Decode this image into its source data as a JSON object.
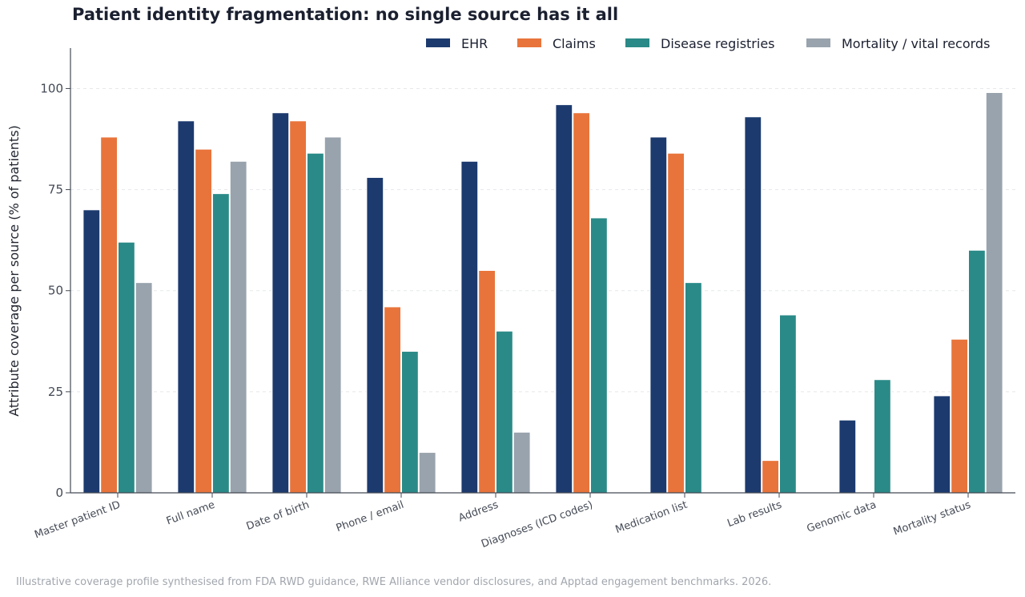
{
  "chart_data": {
    "type": "bar",
    "title": "Patient identity fragmentation: no single source has it all",
    "ylabel": "Attribute coverage per source (% of patients)",
    "xlabel": "",
    "ylim": [
      0,
      110
    ],
    "yticks": [
      0,
      25,
      50,
      75,
      100
    ],
    "grid": true,
    "legend_position": "top-right",
    "categories": [
      "Master patient ID",
      "Full name",
      "Date of birth",
      "Phone / email",
      "Address",
      "Diagnoses (ICD codes)",
      "Medication list",
      "Lab results",
      "Genomic data",
      "Mortality status"
    ],
    "series": [
      {
        "name": "EHR",
        "color": "#1c3a6e",
        "values": [
          70,
          92,
          94,
          78,
          82,
          96,
          88,
          93,
          18,
          24
        ]
      },
      {
        "name": "Claims",
        "color": "#e8743b",
        "values": [
          88,
          85,
          92,
          46,
          55,
          94,
          84,
          8,
          0,
          38
        ]
      },
      {
        "name": "Disease registries",
        "color": "#2a8a87",
        "values": [
          62,
          74,
          84,
          35,
          40,
          68,
          52,
          44,
          28,
          60
        ]
      },
      {
        "name": "Mortality / vital records",
        "color": "#99a3ad",
        "values": [
          52,
          82,
          88,
          10,
          15,
          0,
          0,
          0,
          0,
          99
        ]
      }
    ]
  },
  "footnote": "Illustrative coverage profile synthesised from FDA RWD guidance, RWE Alliance vendor disclosures, and Apptad engagement benchmarks. 2026."
}
